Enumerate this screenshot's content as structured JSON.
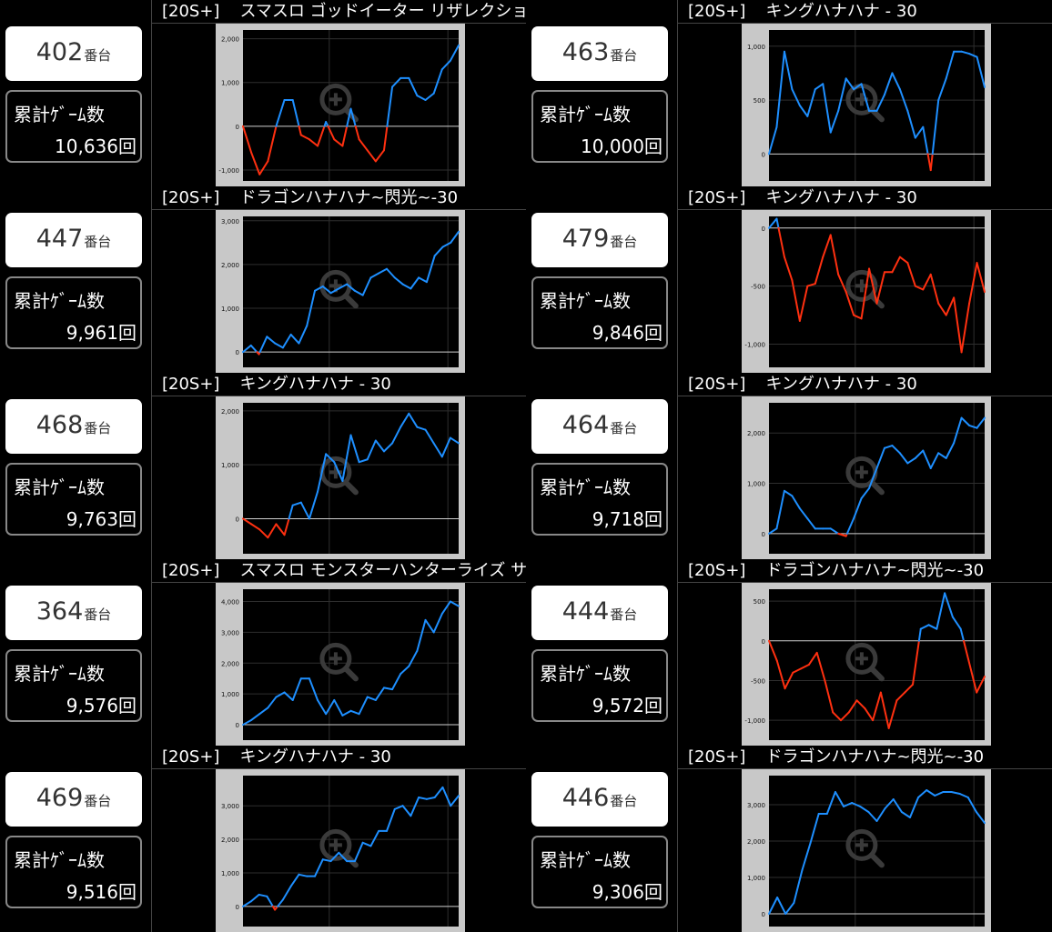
{
  "panels": [
    {
      "tag": "[20S+]",
      "title": "スマスロ ゴッドイーター リザレクション",
      "machine_no": "402",
      "unit": "番台",
      "games_label": "累計ｹﾞｰﾑ数",
      "games": "10,636回",
      "chart": {
        "type": "line",
        "yticks": [
          "2,000",
          "1,000",
          "0",
          "-1,000"
        ],
        "ylim": [
          -1250,
          2200
        ],
        "series": [
          0,
          -600,
          -1100,
          -800,
          0,
          600,
          600,
          -200,
          -300,
          -450,
          100,
          -300,
          -450,
          400,
          -300,
          -550,
          -800,
          -550,
          900,
          1100,
          1100,
          700,
          600,
          750,
          1300,
          1500,
          1850
        ]
      }
    },
    {
      "tag": "[20S+]",
      "title": "キングハナハナ - 30",
      "machine_no": "463",
      "unit": "番台",
      "games_label": "累計ｹﾞｰﾑ数",
      "games": "10,000回",
      "chart": {
        "type": "line",
        "yticks": [
          "1,000",
          "500",
          "0"
        ],
        "ylim": [
          -250,
          1150
        ],
        "series": [
          0,
          250,
          950,
          600,
          450,
          350,
          600,
          650,
          200,
          400,
          700,
          600,
          650,
          400,
          400,
          550,
          750,
          600,
          400,
          150,
          250,
          -150,
          500,
          700,
          950,
          950,
          930,
          900,
          620
        ]
      }
    },
    {
      "tag": "[20S+]",
      "title": "ドラゴンハナハナ~閃光~-30",
      "machine_no": "447",
      "unit": "番台",
      "games_label": "累計ｹﾞｰﾑ数",
      "games": "9,961回",
      "chart": {
        "type": "line",
        "yticks": [
          "3,000",
          "2,000",
          "1,000",
          "0"
        ],
        "ylim": [
          -350,
          3100
        ],
        "series": [
          0,
          150,
          -50,
          350,
          200,
          100,
          400,
          200,
          600,
          1400,
          1500,
          1350,
          1450,
          1550,
          1400,
          1300,
          1700,
          1800,
          1900,
          1700,
          1550,
          1450,
          1700,
          1600,
          2200,
          2400,
          2500,
          2750
        ]
      }
    },
    {
      "tag": "[20S+]",
      "title": "キングハナハナ - 30",
      "machine_no": "479",
      "unit": "番台",
      "games_label": "累計ｹﾞｰﾑ数",
      "games": "9,846回",
      "chart": {
        "type": "line",
        "yticks": [
          "0",
          "-500",
          "-1,000"
        ],
        "ylim": [
          -1200,
          100
        ],
        "series": [
          0,
          80,
          -250,
          -450,
          -800,
          -500,
          -480,
          -250,
          -60,
          -400,
          -550,
          -750,
          -780,
          -350,
          -650,
          -380,
          -380,
          -250,
          -300,
          -500,
          -530,
          -400,
          -650,
          -750,
          -600,
          -1070,
          -650,
          -300,
          -550
        ]
      }
    },
    {
      "tag": "[20S+]",
      "title": "キングハナハナ - 30",
      "machine_no": "468",
      "unit": "番台",
      "games_label": "累計ｹﾞｰﾑ数",
      "games": "9,763回",
      "chart": {
        "type": "line",
        "yticks": [
          "2,000",
          "1,000",
          "0"
        ],
        "ylim": [
          -650,
          2150
        ],
        "series": [
          0,
          -100,
          -200,
          -350,
          -100,
          -300,
          250,
          300,
          0,
          500,
          1200,
          1050,
          700,
          1550,
          1050,
          1100,
          1450,
          1250,
          1400,
          1700,
          1950,
          1700,
          1650,
          1400,
          1150,
          1500,
          1400
        ]
      }
    },
    {
      "tag": "[20S+]",
      "title": "キングハナハナ - 30",
      "machine_no": "464",
      "unit": "番台",
      "games_label": "累計ｹﾞｰﾑ数",
      "games": "9,718回",
      "chart": {
        "type": "line",
        "yticks": [
          "2,000",
          "1,000",
          "0"
        ],
        "ylim": [
          -400,
          2600
        ],
        "series": [
          0,
          100,
          850,
          750,
          500,
          300,
          100,
          100,
          100,
          0,
          -50,
          300,
          700,
          900,
          1300,
          1700,
          1750,
          1600,
          1400,
          1500,
          1650,
          1300,
          1600,
          1500,
          1800,
          2300,
          2150,
          2100,
          2300
        ]
      }
    },
    {
      "tag": "[20S+]",
      "title": "スマスロ モンスターハンターライズ サンブレイク",
      "machine_no": "364",
      "unit": "番台",
      "games_label": "累計ｹﾞｰﾑ数",
      "games": "9,576回",
      "chart": {
        "type": "line",
        "yticks": [
          "4,000",
          "3,000",
          "2,000",
          "1,000",
          "0"
        ],
        "ylim": [
          -500,
          4400
        ],
        "series": [
          0,
          150,
          350,
          550,
          900,
          1050,
          800,
          1500,
          1500,
          800,
          350,
          800,
          300,
          450,
          350,
          900,
          800,
          1200,
          1150,
          1650,
          1900,
          2400,
          3400,
          3000,
          3600,
          4000,
          3850
        ]
      }
    },
    {
      "tag": "[20S+]",
      "title": "ドラゴンハナハナ~閃光~-30",
      "machine_no": "444",
      "unit": "番台",
      "games_label": "累計ｹﾞｰﾑ数",
      "games": "9,572回",
      "chart": {
        "type": "line",
        "yticks": [
          "500",
          "0",
          "-500",
          "-1,000"
        ],
        "ylim": [
          -1250,
          650
        ],
        "series": [
          0,
          -250,
          -600,
          -400,
          -350,
          -300,
          -150,
          -500,
          -900,
          -1000,
          -900,
          -750,
          -850,
          -1000,
          -650,
          -1100,
          -750,
          -650,
          -550,
          150,
          200,
          150,
          600,
          300,
          150,
          -250,
          -650,
          -450
        ]
      }
    },
    {
      "tag": "[20S+]",
      "title": "キングハナハナ - 30",
      "machine_no": "469",
      "unit": "番台",
      "games_label": "累計ｹﾞｰﾑ数",
      "games": "9,516回",
      "chart": {
        "type": "line",
        "yticks": [
          "3,000",
          "2,000",
          "1,000",
          "0"
        ],
        "ylim": [
          -600,
          3900
        ],
        "series": [
          0,
          150,
          350,
          300,
          -100,
          200,
          600,
          950,
          900,
          900,
          1400,
          1350,
          1600,
          1350,
          1350,
          1900,
          1800,
          2250,
          2250,
          2900,
          3000,
          2700,
          3250,
          3200,
          3250,
          3550,
          3000,
          3300
        ]
      }
    },
    {
      "tag": "[20S+]",
      "title": "ドラゴンハナハナ~閃光~-30",
      "machine_no": "446",
      "unit": "番台",
      "games_label": "累計ｹﾞｰﾑ数",
      "games": "9,306回",
      "chart": {
        "type": "line",
        "yticks": [
          "3,000",
          "2,000",
          "1,000",
          "0"
        ],
        "ylim": [
          -350,
          3800
        ],
        "series": [
          0,
          450,
          0,
          300,
          1200,
          1950,
          2750,
          2750,
          3350,
          2950,
          3050,
          2950,
          2800,
          2550,
          2900,
          3150,
          2800,
          2650,
          3200,
          3400,
          3250,
          3350,
          3350,
          3300,
          3200,
          2800,
          2500
        ]
      }
    }
  ],
  "colors": {
    "positive": "#1e8fff",
    "negative": "#ff3010",
    "grid": "#2e2e2e",
    "zero": "#cfcfcf",
    "frame": "#c8c8c8",
    "plot_bg": "#000000"
  }
}
